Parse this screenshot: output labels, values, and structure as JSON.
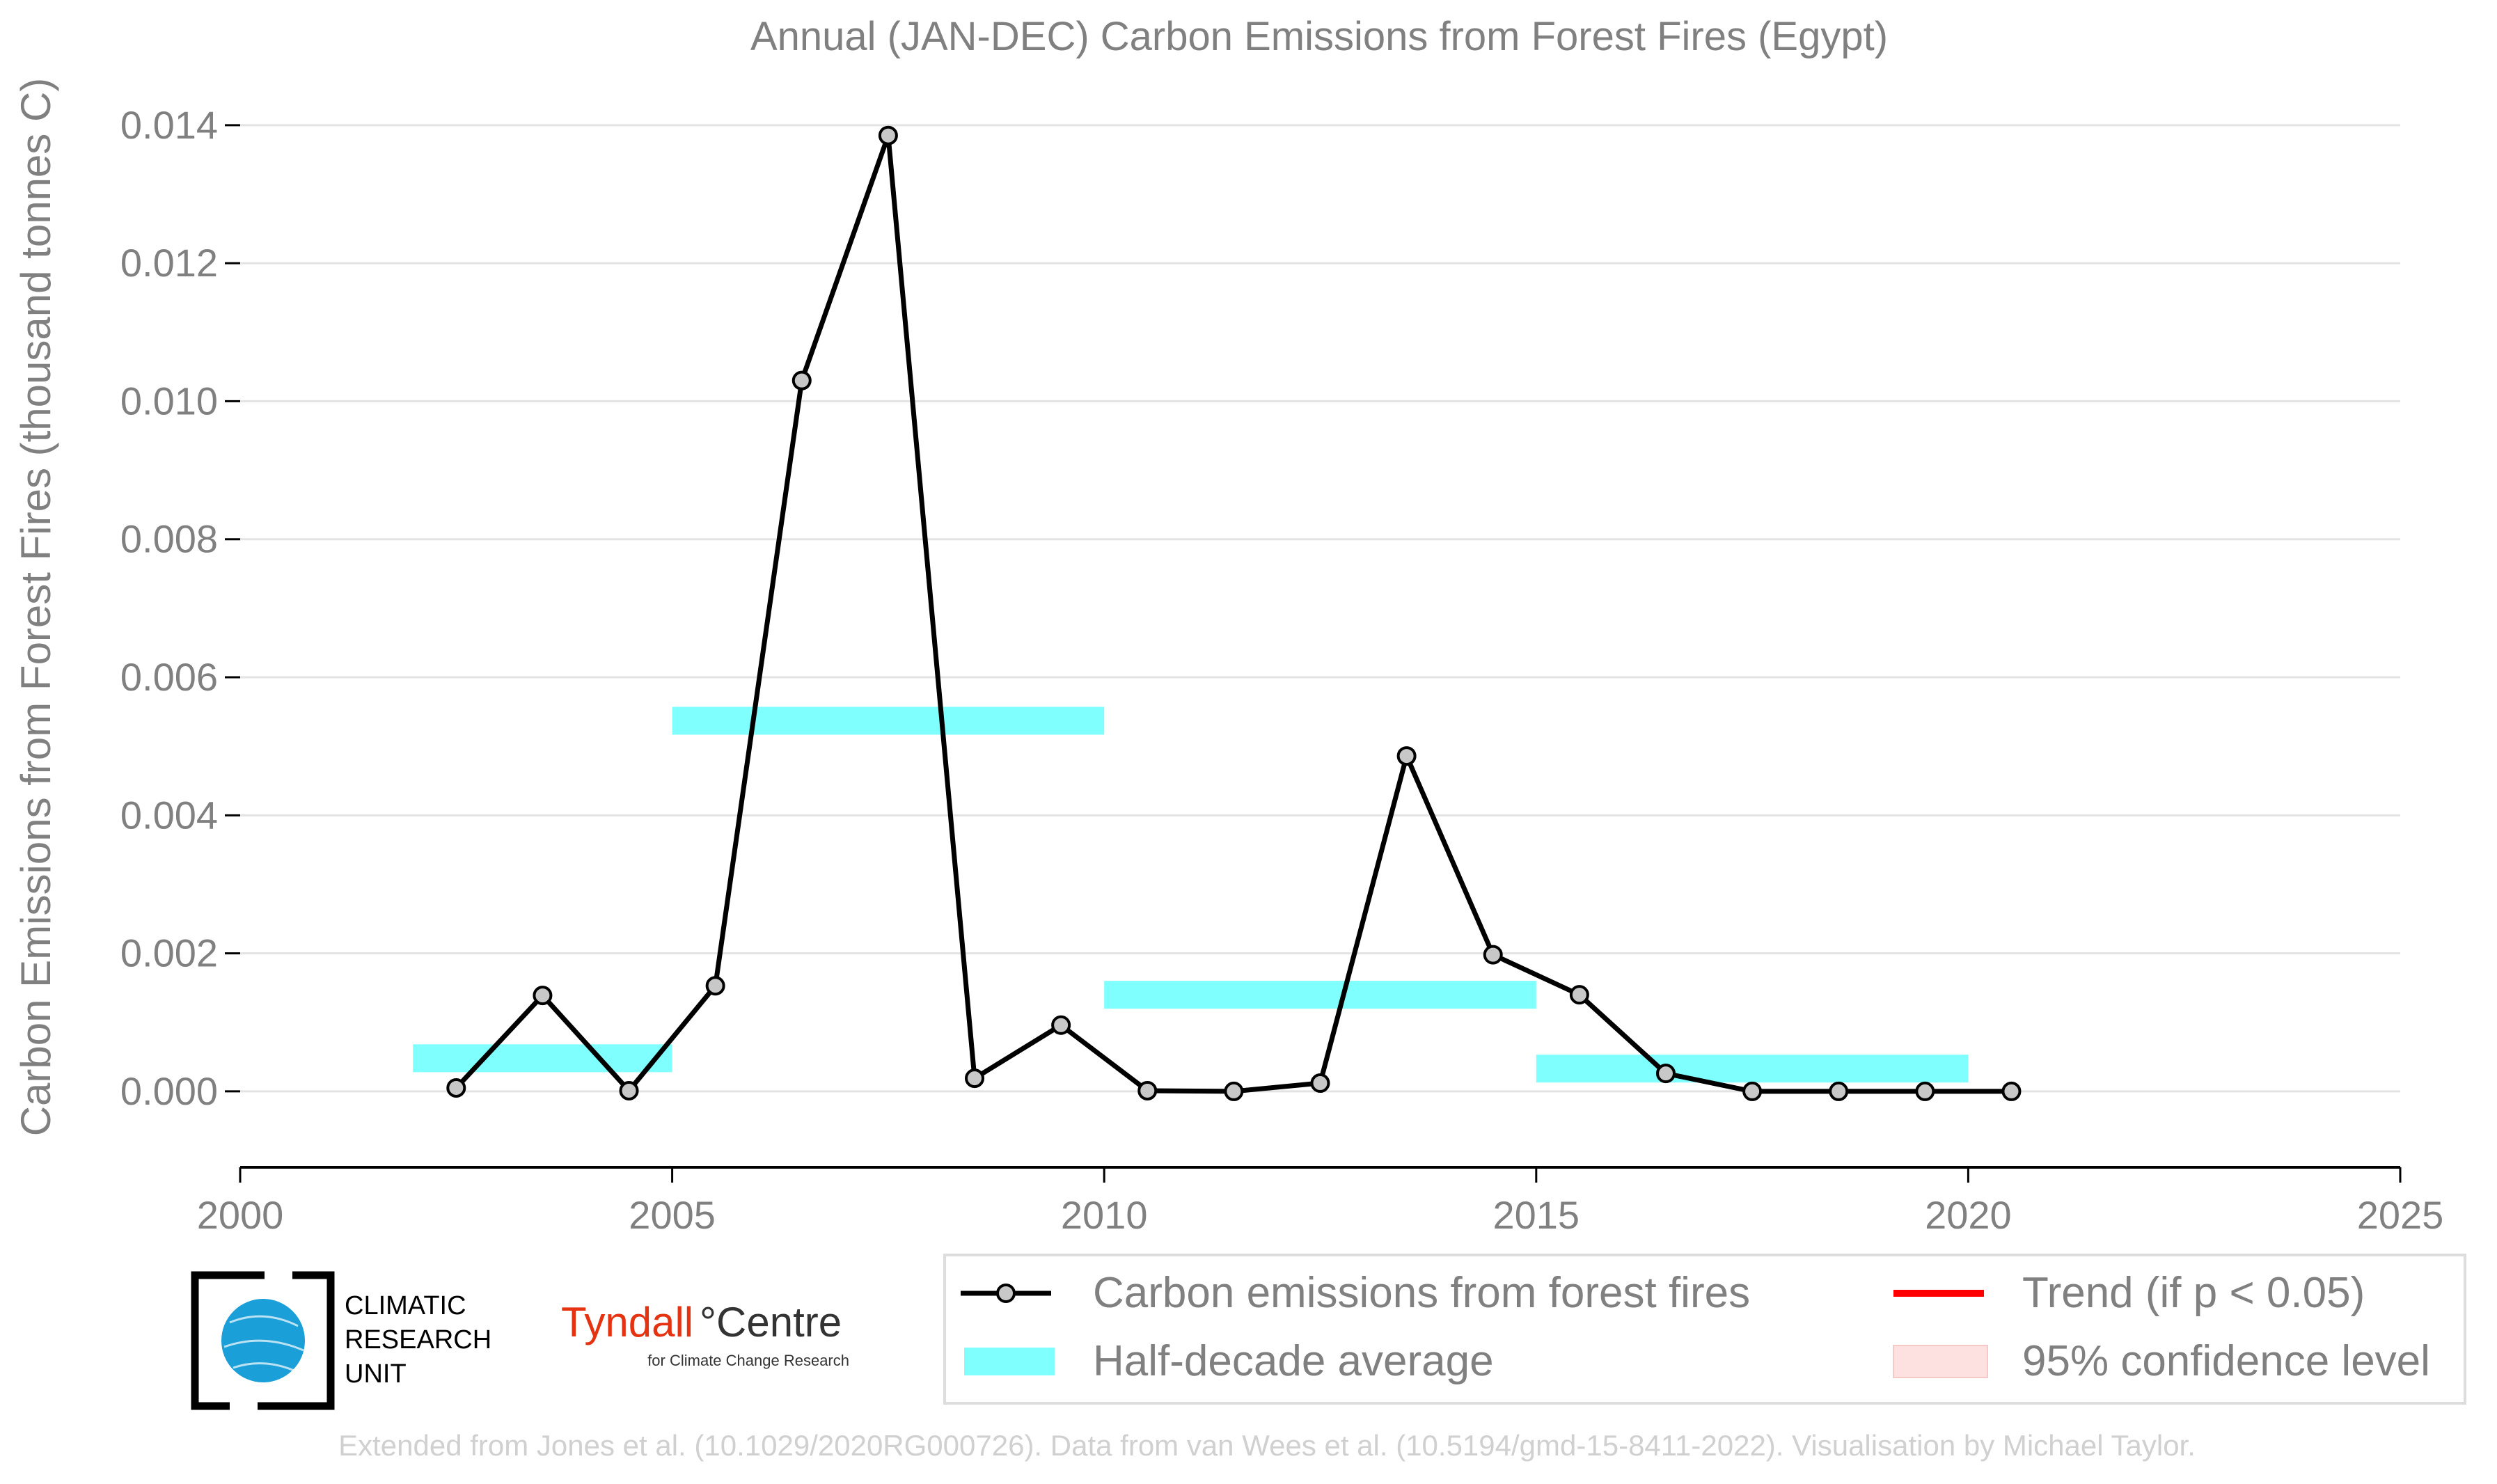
{
  "chart_data": {
    "type": "line",
    "title": "Annual (JAN-DEC) Carbon Emissions from Forest Fires (Egypt)",
    "xlabel": "",
    "ylabel": "Carbon Emissions from Forest Fires (thousand tonnes C)",
    "xlim": [
      2000,
      2025
    ],
    "ylim": [
      -0.0011,
      0.0142
    ],
    "xticks": [
      "2000",
      "2005",
      "2010",
      "2015",
      "2020",
      "2025"
    ],
    "yticks": [
      "0.000",
      "0.002",
      "0.004",
      "0.006",
      "0.008",
      "0.010",
      "0.012",
      "0.014"
    ],
    "grid": true,
    "series": [
      {
        "name": "Carbon emissions from forest fires",
        "type": "line",
        "color": "#000000",
        "marker_color": "#c8c8c8",
        "x": [
          2002.5,
          2003.5,
          2004.5,
          2005.5,
          2006.5,
          2007.5,
          2008.5,
          2009.5,
          2010.5,
          2011.5,
          2012.5,
          2013.5,
          2014.5,
          2015.5,
          2016.5,
          2017.5,
          2018.5,
          2019.5,
          2020.5
        ],
        "values": [
          5e-05,
          0.00139,
          1e-05,
          0.00153,
          0.0103,
          0.01385,
          0.00019,
          0.00096,
          1e-05,
          0.0,
          0.00012,
          0.00486,
          0.00198,
          0.0014,
          0.00026,
          0.0,
          0.0,
          0.0,
          0.0
        ]
      },
      {
        "name": "Half-decade average",
        "type": "bar-segment",
        "color": "#80ffff",
        "segments": [
          {
            "x0": 2002,
            "x1": 2005,
            "value": 0.00048
          },
          {
            "x0": 2005,
            "x1": 2010,
            "value": 0.00537
          },
          {
            "x0": 2010,
            "x1": 2015,
            "value": 0.0014
          },
          {
            "x0": 2015,
            "x1": 2020,
            "value": 0.00033
          }
        ]
      }
    ],
    "legend": {
      "position": "bottom-right",
      "items": [
        {
          "label": "Carbon emissions from forest fires",
          "kind": "line-marker",
          "color": "#000000"
        },
        {
          "label": "Trend (if p < 0.05)",
          "kind": "line",
          "color": "#ff0000"
        },
        {
          "label": "Half-decade average",
          "kind": "patch",
          "color": "#80ffff"
        },
        {
          "label": "95% confidence level",
          "kind": "patch",
          "color": "#fde0e0"
        }
      ]
    },
    "credit": "Extended from Jones et al. (10.1029/2020RG000726). Data from van Wees et al. (10.5194/gmd-15-8411-2022). Visualisation by Michael Taylor."
  },
  "logos": {
    "cru": [
      "CLIMATIC",
      "RESEARCH",
      "UNIT"
    ],
    "tyndall_main": "Tyndall",
    "tyndall_suffix": "°Centre",
    "tyndall_sub": "for Climate Change Research"
  }
}
